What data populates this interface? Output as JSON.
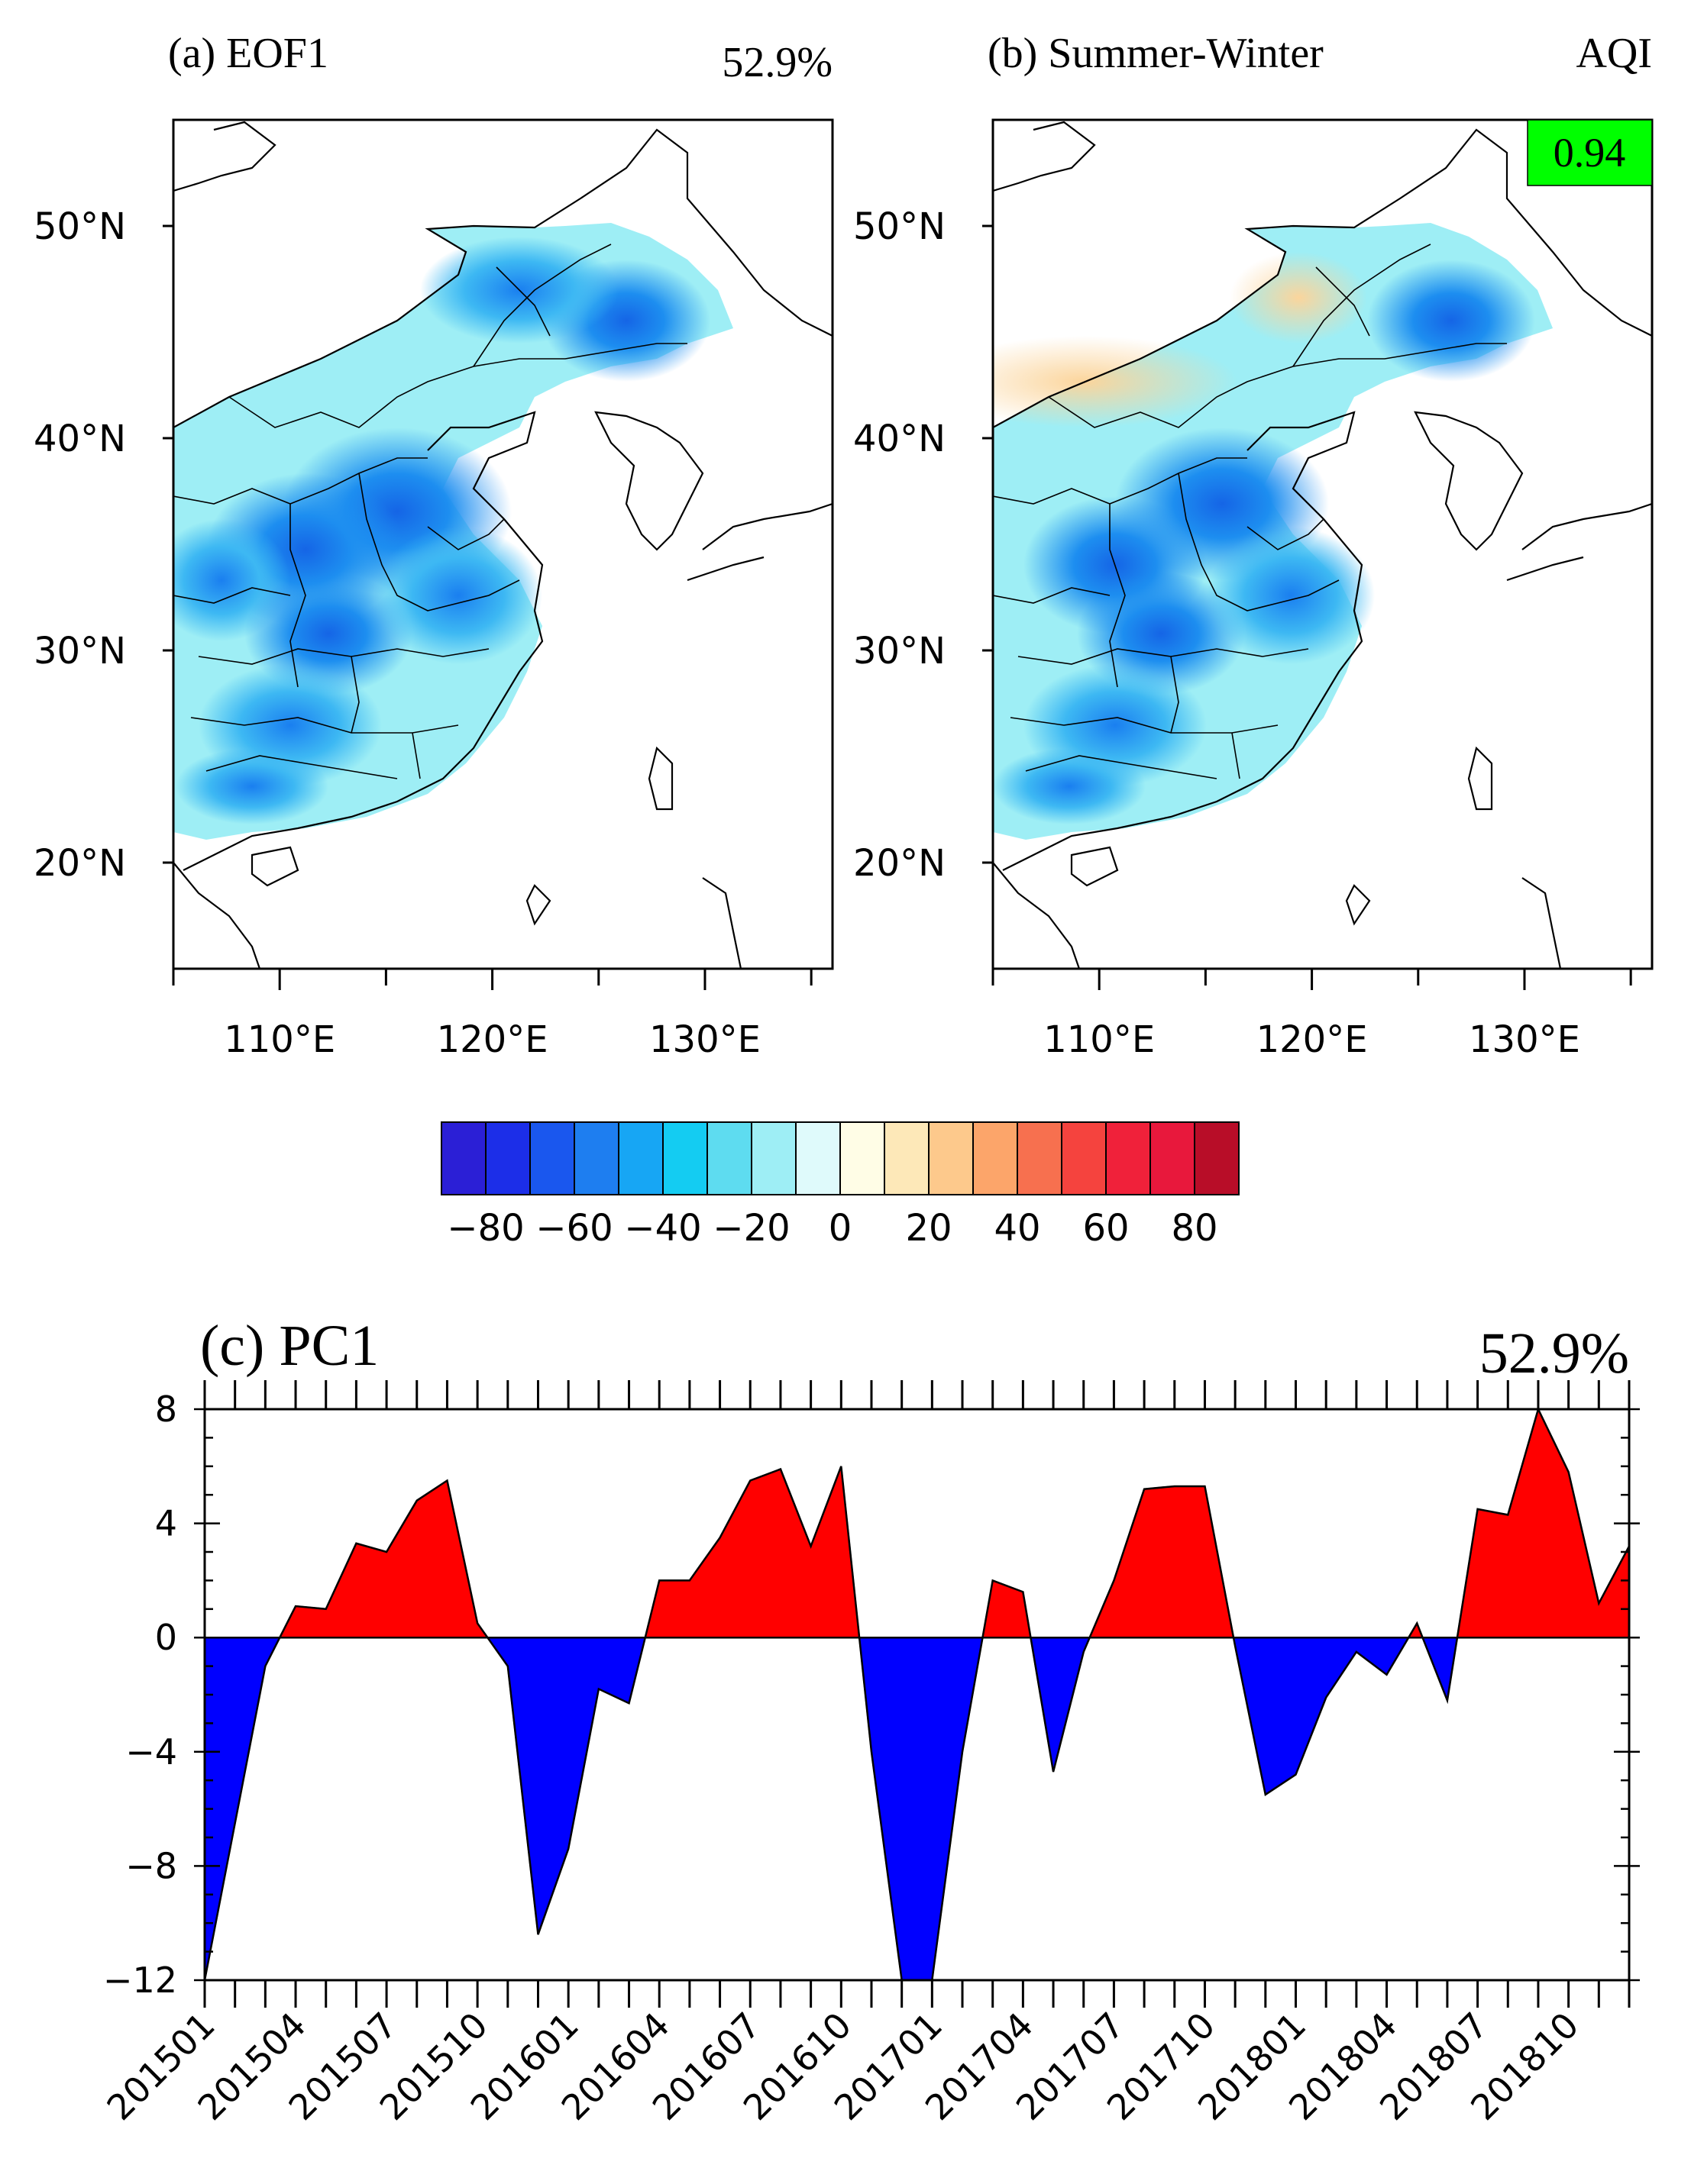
{
  "panel_a": {
    "title": "(a) EOF1",
    "variance": "52.9%"
  },
  "panel_b": {
    "title": "(b) Summer-Winter",
    "label": "AQI",
    "correlation": "0.94",
    "correlation_bg": "#00ff00"
  },
  "map_axes": {
    "lat_ticks": [
      "50°N",
      "40°N",
      "30°N",
      "20°N"
    ],
    "lat_values": [
      50,
      40,
      30,
      20
    ],
    "lon_ticks": [
      "110°E",
      "120°E",
      "130°E"
    ],
    "lon_values": [
      110,
      120,
      130
    ],
    "lon_range": [
      105,
      136
    ],
    "lat_range": [
      15,
      55
    ]
  },
  "colorbar": {
    "tick_labels": [
      "−80",
      "−60",
      "−40",
      "−20",
      "0",
      "20",
      "40",
      "60",
      "80"
    ],
    "colors": [
      "#2b1fd6",
      "#1c2ee8",
      "#1a57ee",
      "#1e7ef0",
      "#17a6f4",
      "#14ccf2",
      "#5edcf0",
      "#9eeef5",
      "#dffafb",
      "#fffde6",
      "#fde8b8",
      "#fdc98c",
      "#fca56a",
      "#f7704f",
      "#f5433e",
      "#f0213a",
      "#e8183c",
      "#b80d28"
    ]
  },
  "chart_data": {
    "type": "area",
    "title": "(c) PC1",
    "variance": "52.9%",
    "ylim": [
      -12,
      8
    ],
    "yticks": [
      8,
      4,
      0,
      -4,
      -8,
      -12
    ],
    "ytick_labels": [
      "8",
      "4",
      "0",
      "−4",
      "−8",
      "−12"
    ],
    "x_tick_labels": [
      "201501",
      "201504",
      "201507",
      "201510",
      "201601",
      "201604",
      "201607",
      "201610",
      "201701",
      "201704",
      "201707",
      "201710",
      "201801",
      "201804",
      "201807",
      "201810"
    ],
    "positive_color": "#ff0000",
    "negative_color": "#0000ff",
    "series": [
      {
        "name": "PC1",
        "values": [
          -12.0,
          -6.5,
          -1.0,
          1.1,
          1.0,
          3.3,
          3.0,
          4.8,
          5.5,
          0.5,
          -1.0,
          -10.4,
          -7.4,
          -1.8,
          -2.3,
          2.0,
          2.0,
          3.5,
          5.5,
          5.9,
          3.2,
          6.0,
          -4.0,
          -12.0,
          -12.0,
          -4.0,
          2.0,
          1.6,
          -4.7,
          -0.5,
          2.0,
          5.2,
          5.3,
          5.3,
          -0.3,
          -5.5,
          -4.8,
          -2.1,
          -0.5,
          -1.3,
          0.5,
          -2.2,
          4.5,
          4.3,
          8.0,
          5.8,
          1.2,
          3.2
        ]
      }
    ]
  }
}
